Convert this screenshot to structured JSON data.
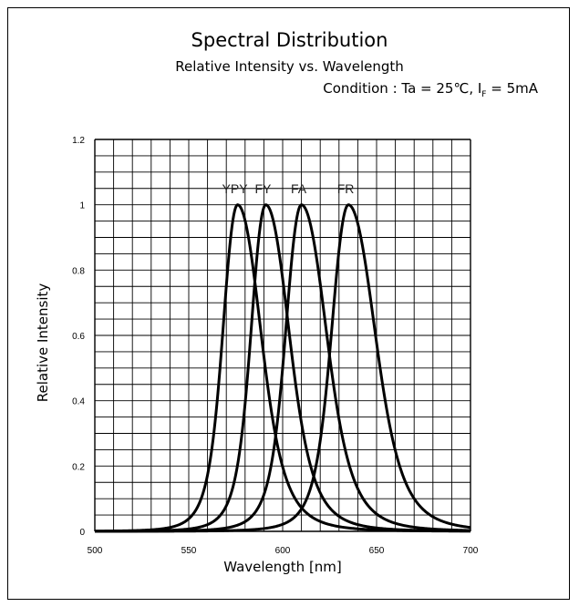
{
  "chart_data": {
    "type": "line",
    "title": "Spectral Distribution",
    "subtitle": "Relative Intensity vs. Wavelength",
    "condition": {
      "prefix": "Condition : Ta = 25℃, I",
      "subscript": "F",
      "suffix": " = 5mA"
    },
    "xlabel": "Wavelength [nm]",
    "ylabel": "Relative Intensity",
    "xlim": [
      500,
      700
    ],
    "ylim": [
      0,
      1.2
    ],
    "xticks": [
      500,
      550,
      600,
      650,
      700
    ],
    "yticks": [
      0,
      0.2,
      0.4,
      0.6,
      0.8,
      1,
      1.2
    ],
    "xtick_labels": [
      "500",
      "550",
      "600",
      "650",
      "700"
    ],
    "ytick_labels": [
      "0",
      "0.2",
      "0.4",
      "0.6",
      "0.8",
      "1",
      "1.2"
    ],
    "grid": true,
    "series": [
      {
        "name": "YPY",
        "peak": 576,
        "halfwidth": 14,
        "skew": -0.45
      },
      {
        "name": "FY",
        "peak": 591,
        "halfwidth": 14,
        "skew": -0.45
      },
      {
        "name": "FA",
        "peak": 610,
        "halfwidth": 15,
        "skew": -0.45
      },
      {
        "name": "FR",
        "peak": 635,
        "halfwidth": 16,
        "skew": -0.45
      }
    ]
  }
}
